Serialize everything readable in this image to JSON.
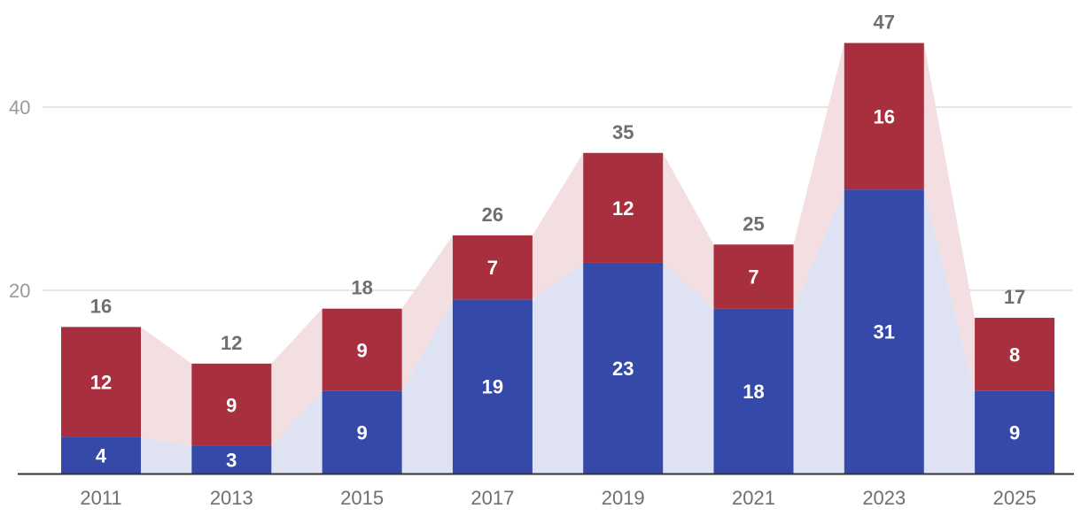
{
  "chart_data": {
    "type": "bar",
    "stacked": true,
    "categories": [
      "2011",
      "2013",
      "2015",
      "2017",
      "2019",
      "2021",
      "2023",
      "2025"
    ],
    "series": [
      {
        "values": [
          4,
          3,
          9,
          19,
          23,
          18,
          31,
          9
        ],
        "color": "#3549a8",
        "area_color": "#dfe2f3"
      },
      {
        "values": [
          12,
          9,
          9,
          7,
          12,
          7,
          16,
          8
        ],
        "color": "#a72f3e",
        "area_color": "#f3dfe1"
      }
    ],
    "totals": [
      16,
      12,
      18,
      26,
      35,
      25,
      47,
      17
    ],
    "y_ticks": [
      "20",
      "40"
    ],
    "ylim": [
      0,
      47
    ],
    "grid": true,
    "title": "",
    "xlabel": "",
    "ylabel": ""
  }
}
